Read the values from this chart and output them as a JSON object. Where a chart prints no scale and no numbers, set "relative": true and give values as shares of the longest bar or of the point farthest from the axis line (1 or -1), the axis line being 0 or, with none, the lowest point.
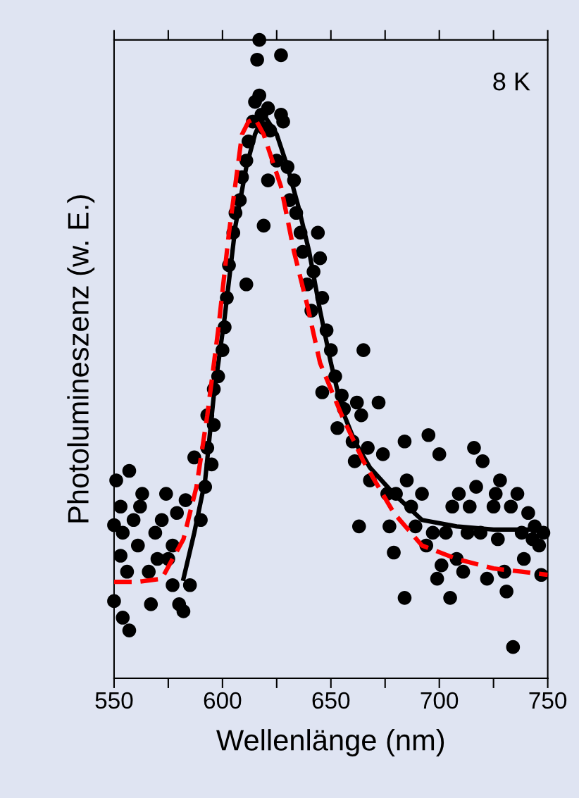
{
  "chart_data": {
    "type": "scatter",
    "xlabel": "Wellenlänge (nm)",
    "ylabel": "Photolumineszenz (w. E.)",
    "relative": true,
    "xlim": [
      550,
      750
    ],
    "xticks": [
      550,
      {
        "value": 575,
        "label": null
      },
      600,
      {
        "value": 625,
        "label": null
      },
      650,
      {
        "value": 675,
        "label": null
      },
      700,
      {
        "value": 725,
        "label": null
      },
      750
    ],
    "grid": false,
    "annotations": [
      "8 K"
    ],
    "series": [
      {
        "marker": "circle",
        "color": "#000000",
        "x": [
          550,
          551,
          557,
          553,
          554,
          550,
          554,
          557,
          562,
          563,
          561,
          566,
          567,
          569,
          572,
          574,
          575,
          577,
          579,
          580,
          582,
          583,
          585,
          587,
          590,
          592,
          593,
          595,
          596,
          593,
          596,
          598,
          600,
          601,
          602,
          603,
          605,
          606,
          608,
          609,
          611,
          611,
          612,
          614,
          615,
          617,
          617,
          616,
          627,
          618,
          619,
          621,
          622,
          621,
          619,
          625,
          627,
          628,
          630,
          631,
          633,
          634,
          636,
          637,
          639,
          641,
          642,
          644,
          645,
          646,
          648,
          650,
          652,
          646,
          655,
          656,
          653,
          660,
          661,
          662,
          664,
          665,
          667,
          668,
          672,
          674,
          663,
          676,
          677,
          679,
          680,
          684,
          685,
          687,
          684,
          689,
          692,
          694,
          695,
          697,
          699,
          700,
          701,
          703,
          705,
          706,
          708,
          709,
          711,
          713,
          714,
          716,
          717,
          719,
          720,
          722,
          725,
          726,
          727,
          728,
          730,
          731,
          733,
          734,
          736,
          738,
          739,
          741,
          743,
          744,
          746,
          747,
          748,
          553,
          559,
          570,
          577,
          556
        ],
        "values": [
          0.24,
          0.31,
          0.325,
          0.269,
          0.228,
          0.121,
          0.095,
          0.075,
          0.269,
          0.289,
          0.208,
          0.167,
          0.116,
          0.228,
          0.248,
          0.289,
          0.187,
          0.146,
          0.259,
          0.116,
          0.105,
          0.279,
          0.146,
          0.346,
          0.248,
          0.3,
          0.361,
          0.335,
          0.397,
          0.412,
          0.453,
          0.473,
          0.514,
          0.55,
          0.596,
          0.647,
          0.698,
          0.729,
          0.749,
          0.785,
          0.811,
          0.617,
          0.841,
          0.872,
          0.903,
          0.913,
          1.0,
          0.969,
          0.976,
          0.883,
          0.862,
          0.893,
          0.858,
          0.78,
          0.709,
          0.811,
          0.883,
          0.872,
          0.801,
          0.749,
          0.78,
          0.729,
          0.698,
          0.668,
          0.617,
          0.576,
          0.637,
          0.698,
          0.658,
          0.596,
          0.545,
          0.514,
          0.473,
          0.448,
          0.443,
          0.422,
          0.392,
          0.371,
          0.34,
          0.432,
          0.412,
          0.514,
          0.361,
          0.31,
          0.432,
          0.351,
          0.238,
          0.289,
          0.238,
          0.197,
          0.289,
          0.371,
          0.31,
          0.269,
          0.126,
          0.238,
          0.289,
          0.208,
          0.381,
          0.228,
          0.156,
          0.351,
          0.177,
          0.228,
          0.126,
          0.269,
          0.187,
          0.289,
          0.167,
          0.228,
          0.269,
          0.361,
          0.3,
          0.228,
          0.34,
          0.156,
          0.269,
          0.289,
          0.218,
          0.31,
          0.167,
          0.136,
          0.269,
          0.049,
          0.289,
          0.228,
          0.187,
          0.259,
          0.218,
          0.238,
          0.208,
          0.162,
          0.228,
          0.192,
          0.248,
          0.187,
          0.208,
          0.167
        ]
      },
      {
        "type": "line",
        "color": "#000000",
        "line_style": "solid",
        "x": [
          582,
          587,
          592,
          596,
          601,
          606,
          611,
          615,
          619,
          625,
          630,
          635,
          640,
          645,
          650,
          655,
          661,
          668,
          679,
          692,
          708,
          725,
          741
        ],
        "values": [
          0.156,
          0.228,
          0.31,
          0.443,
          0.565,
          0.709,
          0.801,
          0.852,
          0.883,
          0.852,
          0.801,
          0.739,
          0.668,
          0.576,
          0.494,
          0.422,
          0.371,
          0.33,
          0.289,
          0.248,
          0.238,
          0.233,
          0.233
        ]
      },
      {
        "type": "line",
        "color": "#ff0000",
        "line_style": "dashed",
        "x": [
          550,
          561,
          572,
          582,
          588,
          593,
          598,
          603,
          609,
          612,
          615,
          619,
          627,
          633,
          639,
          645,
          655,
          665,
          679,
          692,
          708,
          725,
          738,
          750
        ],
        "values": [
          0.151,
          0.151,
          0.156,
          0.218,
          0.3,
          0.412,
          0.545,
          0.698,
          0.852,
          0.872,
          0.877,
          0.852,
          0.77,
          0.668,
          0.586,
          0.494,
          0.412,
          0.34,
          0.259,
          0.208,
          0.187,
          0.172,
          0.167,
          0.162
        ]
      }
    ]
  }
}
